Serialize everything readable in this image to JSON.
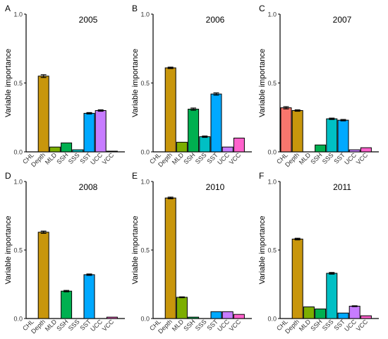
{
  "chart_data": [
    {
      "type": "bar",
      "panel": "A",
      "title": "2005",
      "ylabel": "Variable importance",
      "ylim": [
        0,
        1
      ],
      "yticks": [
        "0.0",
        "0.5",
        "1.0"
      ],
      "categories": [
        "CHL",
        "Depth",
        "MLD",
        "SSH",
        "SSS",
        "SST",
        "UCC",
        "VCC"
      ],
      "values": [
        0.0,
        0.55,
        0.035,
        0.065,
        0.015,
        0.28,
        0.3,
        0.005
      ],
      "errors": [
        0.0,
        0.01,
        0.0,
        0.0,
        0.0,
        0.005,
        0.005,
        0.0
      ]
    },
    {
      "type": "bar",
      "panel": "B",
      "title": "2006",
      "ylabel": "Variable importance",
      "ylim": [
        0,
        1
      ],
      "yticks": [
        "0.0",
        "0.5",
        "1.0"
      ],
      "categories": [
        "CHL",
        "Depth",
        "MLD",
        "SSH",
        "SSS",
        "SST",
        "UCC",
        "VCC"
      ],
      "values": [
        0.0,
        0.61,
        0.07,
        0.31,
        0.11,
        0.42,
        0.035,
        0.1
      ],
      "errors": [
        0.0,
        0.005,
        0.0,
        0.008,
        0.005,
        0.008,
        0.0,
        0.0
      ]
    },
    {
      "type": "bar",
      "panel": "C",
      "title": "2007",
      "ylabel": "Variable importance",
      "ylim": [
        0,
        1
      ],
      "yticks": [
        "0.0",
        "0.5",
        "1.0"
      ],
      "categories": [
        "CHL",
        "Depth",
        "MLD",
        "SSH",
        "SSS",
        "SST",
        "UCC",
        "VCC"
      ],
      "values": [
        0.32,
        0.3,
        0.0,
        0.05,
        0.24,
        0.23,
        0.015,
        0.03
      ],
      "errors": [
        0.008,
        0.005,
        0.0,
        0.0,
        0.005,
        0.005,
        0.0,
        0.0
      ]
    },
    {
      "type": "bar",
      "panel": "D",
      "title": "2008",
      "ylabel": "Variable importance",
      "ylim": [
        0,
        1
      ],
      "yticks": [
        "0.0",
        "0.5",
        "1.0"
      ],
      "categories": [
        "CHL",
        "Depth",
        "MLD",
        "SSH",
        "SSS",
        "SST",
        "UCC",
        "VCC"
      ],
      "values": [
        0.0,
        0.63,
        0.0,
        0.2,
        0.0,
        0.32,
        0.0,
        0.01
      ],
      "errors": [
        0.0,
        0.008,
        0.0,
        0.005,
        0.0,
        0.005,
        0.0,
        0.0
      ]
    },
    {
      "type": "bar",
      "panel": "E",
      "title": "2010",
      "ylabel": "Variable importance",
      "ylim": [
        0,
        1
      ],
      "yticks": [
        "0.0",
        "0.5",
        "1.0"
      ],
      "categories": [
        "CHL",
        "Depth",
        "MLD",
        "SSH",
        "SSS",
        "SST",
        "UCC",
        "VCC"
      ],
      "values": [
        0.0,
        0.88,
        0.155,
        0.01,
        0.0,
        0.05,
        0.05,
        0.03
      ],
      "errors": [
        0.0,
        0.006,
        0.003,
        0.0,
        0.0,
        0.0,
        0.0,
        0.0
      ]
    },
    {
      "type": "bar",
      "panel": "F",
      "title": "2011",
      "ylabel": "Variable importance",
      "ylim": [
        0,
        1
      ],
      "yticks": [
        "0.0",
        "0.5",
        "1.0"
      ],
      "categories": [
        "CHL",
        "Depth",
        "MLD",
        "SSH",
        "SSS",
        "SST",
        "UCC",
        "VCC"
      ],
      "values": [
        0.0,
        0.58,
        0.085,
        0.07,
        0.33,
        0.04,
        0.09,
        0.02
      ],
      "errors": [
        0.0,
        0.006,
        0.0,
        0.0,
        0.006,
        0.0,
        0.003,
        0.0
      ]
    }
  ],
  "colors": {
    "CHL": "#f8766d",
    "Depth": "#c8960c",
    "MLD": "#7cae00",
    "SSH": "#00b050",
    "SSS": "#00bfc4",
    "SST": "#00a9ff",
    "UCC": "#c77cff",
    "VCC": "#ff61cc",
    "axis": "#000000"
  }
}
